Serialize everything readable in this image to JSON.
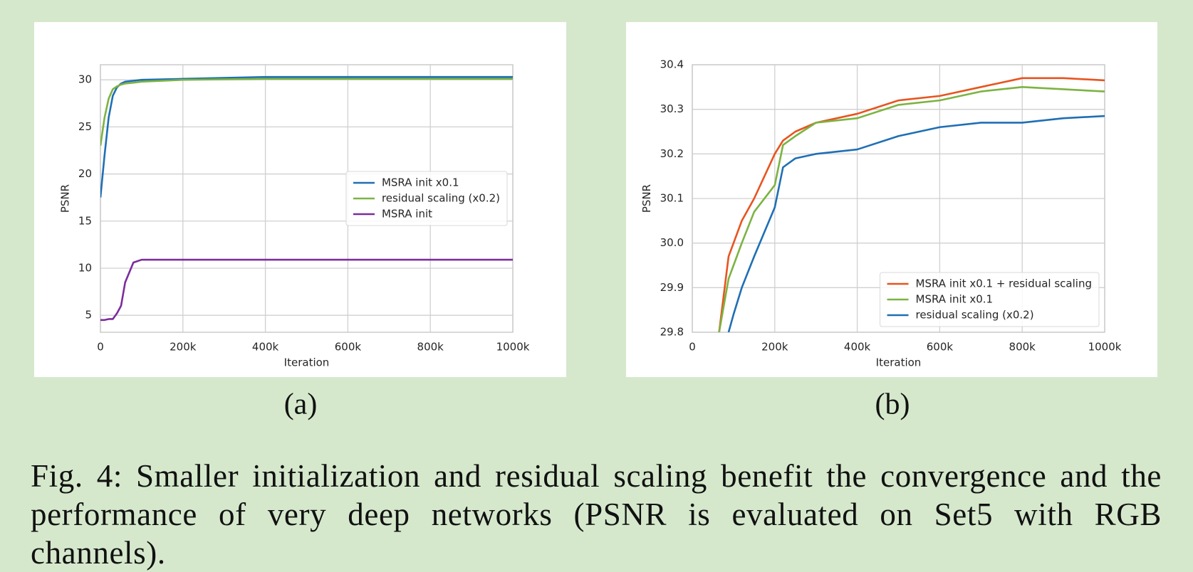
{
  "chart_data": [
    {
      "type": "line",
      "xlabel": "Iteration",
      "ylabel": "PSNR",
      "x": [
        0,
        10000,
        20000,
        30000,
        40000,
        50000,
        60000,
        80000,
        100000,
        200000,
        400000,
        600000,
        800000,
        1000000
      ],
      "series": [
        {
          "name": "MSRA init x0.1",
          "color": "#1f6fb5",
          "values": [
            17.5,
            22,
            26,
            28.3,
            29.2,
            29.6,
            29.8,
            29.9,
            30.0,
            30.1,
            30.3,
            30.3,
            30.3,
            30.3
          ]
        },
        {
          "name": "residual scaling (x0.2)",
          "color": "#7cb342",
          "values": [
            23,
            26,
            28,
            29,
            29.3,
            29.5,
            29.6,
            29.7,
            29.8,
            30.0,
            30.1,
            30.1,
            30.1,
            30.1
          ]
        },
        {
          "name": "MSRA init",
          "color": "#7b2d9b",
          "values": [
            4.5,
            4.5,
            4.6,
            4.6,
            5.2,
            6,
            8.5,
            10.6,
            10.9,
            10.9,
            10.9,
            10.9,
            10.9,
            10.9
          ]
        }
      ],
      "xlim": [
        0,
        1000000
      ],
      "ylim": [
        3.2,
        31.6
      ],
      "xticks": [
        0,
        {
          "value": 200000,
          "label": "200k"
        },
        {
          "value": 400000,
          "label": "400k"
        },
        {
          "value": 600000,
          "label": "600k"
        },
        {
          "value": 800000,
          "label": "800k"
        },
        {
          "value": 1000000,
          "label": "1000k"
        }
      ],
      "yticks": [
        5,
        10,
        15,
        20,
        25,
        30
      ],
      "grid": true,
      "legend": "center right"
    },
    {
      "type": "line",
      "xlabel": "Iteration",
      "ylabel": "PSNR",
      "x": [
        65000,
        88000,
        100000,
        120000,
        150000,
        200000,
        220000,
        250000,
        300000,
        400000,
        500000,
        600000,
        700000,
        800000,
        900000,
        1000000
      ],
      "series": [
        {
          "name": "MSRA init x0.1 + residual scaling",
          "color": "#e8541f",
          "values": [
            29.8,
            29.97,
            30.0,
            30.05,
            30.1,
            30.2,
            30.23,
            30.25,
            30.27,
            30.29,
            30.32,
            30.33,
            30.35,
            30.37,
            30.37,
            30.365
          ]
        },
        {
          "name": "MSRA init x0.1",
          "color": "#7cb342",
          "values": [
            29.8,
            29.92,
            29.95,
            30.0,
            30.07,
            30.13,
            30.22,
            30.24,
            30.27,
            30.28,
            30.31,
            30.32,
            30.34,
            30.35,
            30.345,
            30.34
          ]
        },
        {
          "name": "residual scaling (x0.2)",
          "color": "#1f6fb5",
          "values": [
            null,
            29.8,
            29.84,
            29.9,
            29.97,
            30.08,
            30.17,
            30.19,
            30.2,
            30.21,
            30.24,
            30.26,
            30.27,
            30.27,
            30.28,
            30.285
          ]
        }
      ],
      "xlim": [
        0,
        1000000
      ],
      "ylim": [
        29.8,
        30.4
      ],
      "xticks": [
        0,
        {
          "value": 200000,
          "label": "200k"
        },
        {
          "value": 400000,
          "label": "400k"
        },
        {
          "value": 600000,
          "label": "600k"
        },
        {
          "value": 800000,
          "label": "800k"
        },
        {
          "value": 1000000,
          "label": "1000k"
        }
      ],
      "yticks": [
        29.8,
        29.9,
        {
          "value": 30,
          "label": "30.0"
        },
        30.1,
        30.2,
        30.3,
        30.4
      ],
      "grid": true,
      "legend": "lower right"
    }
  ],
  "panel_labels": [
    "(a)",
    "(b)"
  ],
  "caption": "Fig. 4: Smaller initialization and residual scaling benefit the convergence and the performance of very deep networks (PSNR is evaluated on Set5 with RGB channels)."
}
